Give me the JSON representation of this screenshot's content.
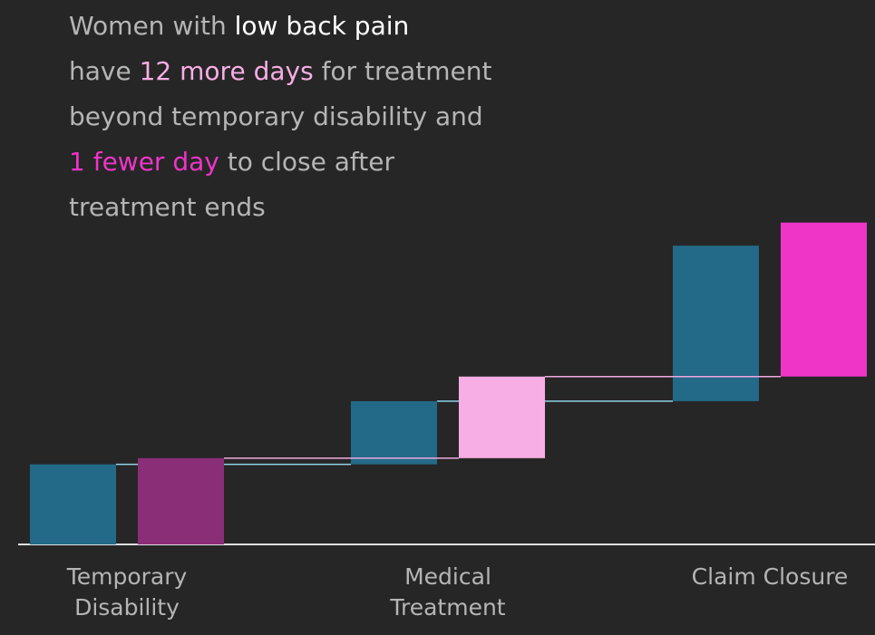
{
  "chart_data": {
    "type": "waterfall",
    "title": [
      [
        {
          "text": "Women with ",
          "color": "#b5b5b5"
        },
        {
          "text": "low back pain",
          "color": "#ffffff"
        }
      ],
      [
        {
          "text": "have ",
          "color": "#b5b5b5"
        },
        {
          "text": "12 more days",
          "color": "#f7aee5"
        },
        {
          "text": " for treatment",
          "color": "#b5b5b5"
        }
      ],
      [
        {
          "text": "beyond temporary disability and",
          "color": "#b5b5b5"
        }
      ],
      [
        {
          "text": "1 fewer day",
          "color": "#ee35c8"
        },
        {
          "text": " to close after",
          "color": "#b5b5b5"
        }
      ],
      [
        {
          "text": "treatment ends",
          "color": "#b5b5b5"
        }
      ]
    ],
    "categories": [
      "Temporary Disability",
      "Medical Treatment",
      "Claim Closure"
    ],
    "series": [
      {
        "color": "#236a88",
        "connector_color": "#8fd3e8",
        "values": [
          52,
          41,
          101
        ]
      },
      {
        "colors": [
          "#8b2e78",
          "#f7aee5",
          "#ee35c8"
        ],
        "connector_color": "#f0a8e0",
        "values": [
          56,
          53,
          100
        ]
      }
    ],
    "ylim": [
      0,
      220
    ]
  }
}
